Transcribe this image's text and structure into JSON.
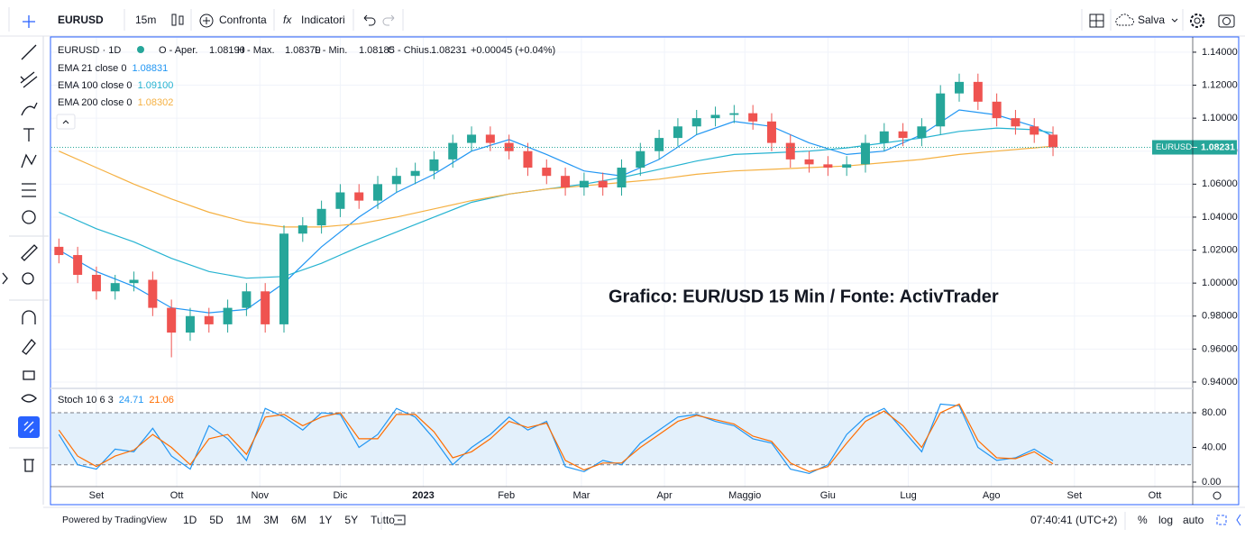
{
  "toolbar": {
    "symbol": "EURUSD",
    "interval": "15m",
    "compare": "Confronta",
    "indicators": "Indicatori",
    "save": "Salva"
  },
  "legend": {
    "symbol": "EURUSD · 1D",
    "open_label": "O - Aper.",
    "open": "1.08190",
    "high_label": "H - Max.",
    "high": "1.08379",
    "low_label": "L - Min.",
    "low": "1.08185",
    "close_label": "C - Chius.",
    "close": "1.08231",
    "change": "+0.00045 (+0.04%)"
  },
  "chart_data": [
    {
      "type": "candlestick",
      "annotation": "Grafico: EUR/USD 15 Min / Fonte: ActivTrader",
      "price_tag": {
        "symbol": "EURUSD",
        "value": 1.08231
      },
      "xlim": [
        -16.8,
        408.8
      ],
      "xticks": [
        {
          "value": 0,
          "label": "Set"
        },
        {
          "value": 30,
          "label": "Ott"
        },
        {
          "value": 61,
          "label": "Nov"
        },
        {
          "value": 91,
          "label": "Dic"
        },
        {
          "value": 122,
          "label": "2023"
        },
        {
          "value": 153,
          "label": "Feb"
        },
        {
          "value": 181,
          "label": "Mar"
        },
        {
          "value": 212,
          "label": "Apr"
        },
        {
          "value": 242,
          "label": "Maggio"
        },
        {
          "value": 273,
          "label": "Giu"
        },
        {
          "value": 303,
          "label": "Lug"
        },
        {
          "value": 334,
          "label": "Ago"
        },
        {
          "value": 365,
          "label": "Set"
        },
        {
          "value": 395,
          "label": "Ott"
        }
      ],
      "ylim": [
        0.9367,
        1.1487
      ],
      "yticks": [
        {
          "value": 0.94,
          "label": "0.94000"
        },
        {
          "value": 0.96,
          "label": "0.96000"
        },
        {
          "value": 0.98,
          "label": "0.98000"
        },
        {
          "value": 1.0,
          "label": "1.00000"
        },
        {
          "value": 1.02,
          "label": "1.02000"
        },
        {
          "value": 1.04,
          "label": "1.04000"
        },
        {
          "value": 1.06,
          "label": "1.06000"
        },
        {
          "value": 1.08,
          "label": "1.08000"
        },
        {
          "value": 1.1,
          "label": "1.10000"
        },
        {
          "value": 1.12,
          "label": "1.12000"
        },
        {
          "value": 1.14,
          "label": "1.14000"
        }
      ],
      "up_color": "#26a69a",
      "down_color": "#ef5350",
      "candles": {
        "x": [
          -14,
          -7,
          0,
          7,
          14,
          21,
          28,
          35,
          42,
          49,
          56,
          63,
          70,
          77,
          84,
          91,
          98,
          105,
          112,
          119,
          126,
          133,
          140,
          147,
          154,
          161,
          168,
          175,
          182,
          189,
          196,
          203,
          210,
          217,
          224,
          231,
          238,
          245,
          252,
          259,
          266,
          273,
          280,
          287,
          294,
          301,
          308,
          315,
          322,
          329,
          336,
          343,
          350,
          357
        ],
        "open": [
          1.022,
          1.017,
          1.005,
          0.995,
          1.0,
          1.002,
          0.985,
          0.97,
          0.98,
          0.975,
          0.985,
          0.995,
          0.975,
          1.03,
          1.035,
          1.045,
          1.055,
          1.05,
          1.06,
          1.065,
          1.068,
          1.075,
          1.085,
          1.09,
          1.085,
          1.08,
          1.07,
          1.065,
          1.058,
          1.062,
          1.058,
          1.07,
          1.08,
          1.088,
          1.095,
          1.1,
          1.102,
          1.103,
          1.098,
          1.085,
          1.075,
          1.072,
          1.07,
          1.072,
          1.085,
          1.092,
          1.088,
          1.095,
          1.115,
          1.122,
          1.11,
          1.1,
          1.095,
          1.09
        ],
        "high": [
          1.027,
          1.022,
          1.01,
          1.005,
          1.007,
          1.007,
          0.99,
          0.985,
          0.985,
          0.99,
          1.0,
          1.0,
          1.035,
          1.04,
          1.05,
          1.06,
          1.06,
          1.065,
          1.07,
          1.073,
          1.08,
          1.09,
          1.095,
          1.095,
          1.09,
          1.085,
          1.075,
          1.07,
          1.067,
          1.067,
          1.075,
          1.085,
          1.093,
          1.1,
          1.105,
          1.107,
          1.108,
          1.108,
          1.103,
          1.09,
          1.08,
          1.077,
          1.077,
          1.09,
          1.097,
          1.097,
          1.1,
          1.12,
          1.127,
          1.127,
          1.115,
          1.105,
          1.1,
          1.095
        ],
        "low": [
          1.012,
          1.0,
          0.99,
          0.99,
          0.995,
          0.98,
          0.955,
          0.965,
          0.97,
          0.97,
          0.98,
          0.97,
          0.97,
          1.025,
          1.03,
          1.04,
          1.045,
          1.045,
          1.055,
          1.06,
          1.063,
          1.07,
          1.08,
          1.08,
          1.075,
          1.065,
          1.06,
          1.053,
          1.053,
          1.053,
          1.053,
          1.065,
          1.075,
          1.083,
          1.09,
          1.095,
          1.097,
          1.093,
          1.08,
          1.07,
          1.067,
          1.065,
          1.065,
          1.067,
          1.08,
          1.083,
          1.083,
          1.09,
          1.11,
          1.105,
          1.095,
          1.09,
          1.085,
          1.077
        ],
        "close": [
          1.017,
          1.005,
          0.995,
          1.0,
          1.002,
          0.985,
          0.97,
          0.98,
          0.975,
          0.985,
          0.995,
          0.975,
          1.03,
          1.035,
          1.045,
          1.055,
          1.05,
          1.06,
          1.065,
          1.068,
          1.075,
          1.085,
          1.09,
          1.085,
          1.08,
          1.07,
          1.065,
          1.058,
          1.062,
          1.058,
          1.07,
          1.08,
          1.088,
          1.095,
          1.1,
          1.102,
          1.103,
          1.098,
          1.085,
          1.075,
          1.072,
          1.07,
          1.072,
          1.085,
          1.092,
          1.088,
          1.095,
          1.115,
          1.122,
          1.11,
          1.1,
          1.095,
          1.09,
          1.08231
        ]
      },
      "series": [
        {
          "name": "EMA 21 close 0",
          "value_label": "1.08831",
          "color": "#2196f3",
          "x": [
            -14,
            0,
            14,
            28,
            42,
            56,
            70,
            84,
            98,
            112,
            126,
            140,
            154,
            168,
            182,
            196,
            210,
            224,
            238,
            252,
            266,
            280,
            294,
            308,
            322,
            336,
            350,
            357
          ],
          "values": [
            1.02,
            1.007,
            0.998,
            0.985,
            0.982,
            0.984,
            1.0,
            1.022,
            1.04,
            1.055,
            1.066,
            1.08,
            1.087,
            1.078,
            1.068,
            1.065,
            1.075,
            1.09,
            1.098,
            1.095,
            1.085,
            1.078,
            1.08,
            1.09,
            1.105,
            1.102,
            1.095,
            1.089
          ]
        },
        {
          "name": "EMA 100 close 0",
          "value_label": "1.09100",
          "color": "#26b3d1",
          "x": [
            -14,
            0,
            14,
            28,
            42,
            56,
            70,
            84,
            98,
            112,
            126,
            140,
            154,
            168,
            182,
            196,
            210,
            224,
            238,
            252,
            266,
            280,
            294,
            308,
            322,
            336,
            350,
            357
          ],
          "values": [
            1.043,
            1.033,
            1.025,
            1.015,
            1.007,
            1.003,
            1.004,
            1.012,
            1.022,
            1.031,
            1.04,
            1.049,
            1.054,
            1.057,
            1.06,
            1.064,
            1.069,
            1.074,
            1.078,
            1.079,
            1.08,
            1.082,
            1.085,
            1.088,
            1.092,
            1.094,
            1.093,
            1.091
          ]
        },
        {
          "name": "EMA 200 close 0",
          "value_label": "1.08302",
          "color": "#f5b041",
          "x": [
            -14,
            0,
            14,
            28,
            42,
            56,
            70,
            84,
            98,
            112,
            126,
            140,
            154,
            168,
            182,
            196,
            210,
            224,
            238,
            252,
            266,
            280,
            294,
            308,
            322,
            336,
            350,
            357
          ],
          "values": [
            1.08,
            1.07,
            1.06,
            1.051,
            1.043,
            1.037,
            1.034,
            1.034,
            1.036,
            1.04,
            1.045,
            1.05,
            1.054,
            1.057,
            1.059,
            1.061,
            1.063,
            1.066,
            1.068,
            1.069,
            1.07,
            1.071,
            1.073,
            1.075,
            1.078,
            1.08,
            1.082,
            1.083
          ]
        }
      ]
    },
    {
      "type": "line",
      "name": "Stoch 10 6 3",
      "ylim": [
        -5.2,
        107
      ],
      "yticks": [
        {
          "value": 0,
          "label": "0.00"
        },
        {
          "value": 40,
          "label": "40.00"
        },
        {
          "value": 80,
          "label": "80.00"
        }
      ],
      "bands": [
        20,
        80
      ],
      "band_color": "#e3f0fb",
      "x": [
        -14,
        -7,
        0,
        7,
        14,
        21,
        28,
        35,
        42,
        49,
        56,
        63,
        70,
        77,
        84,
        91,
        98,
        105,
        112,
        119,
        126,
        133,
        140,
        147,
        154,
        161,
        168,
        175,
        182,
        189,
        196,
        203,
        210,
        217,
        224,
        231,
        238,
        245,
        252,
        259,
        266,
        273,
        280,
        287,
        294,
        301,
        308,
        315,
        322,
        329,
        336,
        343,
        350,
        357
      ],
      "series": [
        {
          "color": "#2196f3",
          "values": [
            55,
            20,
            15,
            38,
            35,
            62,
            30,
            15,
            65,
            50,
            25,
            85,
            75,
            60,
            80,
            78,
            40,
            55,
            85,
            75,
            50,
            20,
            40,
            55,
            75,
            60,
            70,
            18,
            12,
            25,
            20,
            45,
            60,
            75,
            78,
            70,
            65,
            50,
            45,
            15,
            10,
            20,
            55,
            75,
            85,
            60,
            35,
            90,
            88,
            40,
            25,
            28,
            38,
            24.71
          ]
        },
        {
          "color": "#ff6d00",
          "values": [
            60,
            30,
            18,
            30,
            37,
            55,
            40,
            20,
            50,
            55,
            32,
            75,
            78,
            65,
            75,
            80,
            50,
            50,
            78,
            78,
            58,
            28,
            35,
            50,
            70,
            63,
            68,
            25,
            14,
            22,
            22,
            40,
            55,
            70,
            77,
            72,
            67,
            53,
            47,
            22,
            12,
            18,
            45,
            70,
            82,
            65,
            40,
            80,
            90,
            48,
            28,
            27,
            35,
            21.06
          ]
        }
      ]
    }
  ],
  "footer": {
    "powered": "Powered by TradingView",
    "ranges": [
      "1D",
      "5D",
      "1M",
      "3M",
      "6M",
      "1Y",
      "5Y",
      "Tutto"
    ],
    "time": "07:40:41 (UTC+2)",
    "percent": "%",
    "log": "log",
    "auto": "auto"
  }
}
